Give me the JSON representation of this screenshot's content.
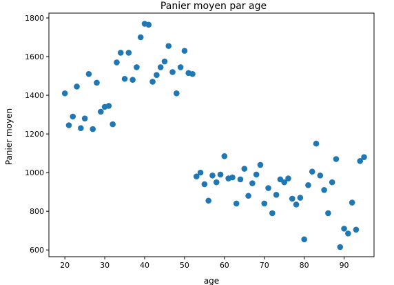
{
  "colors": {
    "point": "#1f77b4",
    "axis": "#000000",
    "background": "#ffffff"
  },
  "chart_data": {
    "type": "scatter",
    "title": "Panier moyen par age",
    "xlabel": "age",
    "ylabel": "Panier moyen",
    "xlim": [
      16,
      97.5
    ],
    "ylim": [
      565,
      1825
    ],
    "xticks": [
      20,
      30,
      40,
      50,
      60,
      70,
      80,
      90
    ],
    "yticks": [
      600,
      800,
      1000,
      1200,
      1400,
      1600,
      1800
    ],
    "grid": false,
    "x": [
      20,
      21,
      22,
      23,
      24,
      25,
      26,
      27,
      28,
      29,
      30,
      31,
      32,
      33,
      34,
      35,
      36,
      37,
      38,
      39,
      40,
      41,
      42,
      43,
      44,
      45,
      46,
      47,
      48,
      49,
      50,
      51,
      52,
      53,
      54,
      55,
      56,
      57,
      58,
      59,
      60,
      61,
      62,
      63,
      64,
      65,
      66,
      67,
      68,
      69,
      70,
      71,
      72,
      73,
      74,
      75,
      76,
      77,
      78,
      79,
      80,
      81,
      82,
      83,
      84,
      85,
      86,
      87,
      88,
      89,
      90,
      91,
      92,
      93,
      94,
      95
    ],
    "y": [
      1410,
      1245,
      1290,
      1445,
      1230,
      1280,
      1510,
      1225,
      1465,
      1315,
      1340,
      1345,
      1250,
      1570,
      1620,
      1485,
      1620,
      1480,
      1545,
      1700,
      1770,
      1765,
      1470,
      1505,
      1545,
      1575,
      1655,
      1520,
      1410,
      1545,
      1630,
      1515,
      1510,
      980,
      1000,
      940,
      855,
      985,
      950,
      990,
      1085,
      970,
      975,
      840,
      965,
      1020,
      880,
      945,
      990,
      1040,
      840,
      920,
      790,
      885,
      965,
      950,
      970,
      865,
      835,
      870,
      655,
      935,
      1005,
      1150,
      985,
      910,
      790,
      950,
      1070,
      615,
      710,
      685,
      845,
      705,
      1060,
      1080
    ]
  }
}
